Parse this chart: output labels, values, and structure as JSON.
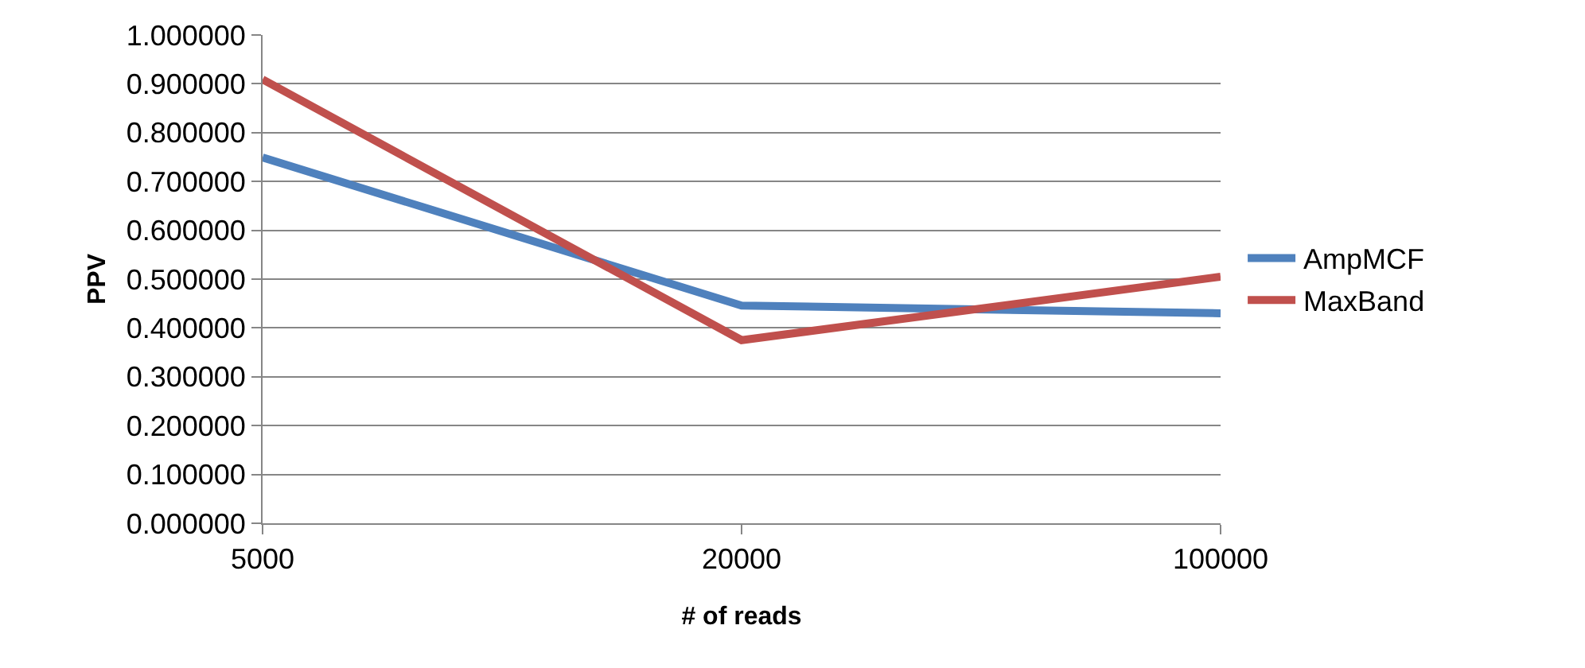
{
  "chart_data": {
    "type": "line",
    "xlabel": "# of reads",
    "ylabel": "PPV",
    "categories": [
      "5000",
      "20000",
      "100000"
    ],
    "series": [
      {
        "name": "AmpMCF",
        "color": "#4f81bd",
        "values": [
          0.749,
          0.446,
          0.43
        ]
      },
      {
        "name": "MaxBand",
        "color": "#c0504d",
        "values": [
          0.909,
          0.375,
          0.505
        ]
      }
    ],
    "ylim": [
      0,
      1
    ],
    "yticks": [
      {
        "value": 0,
        "label": "0.000000"
      },
      {
        "value": 0.1,
        "label": "0.100000"
      },
      {
        "value": 0.2,
        "label": "0.200000"
      },
      {
        "value": 0.3,
        "label": "0.300000"
      },
      {
        "value": 0.4,
        "label": "0.400000"
      },
      {
        "value": 0.5,
        "label": "0.500000"
      },
      {
        "value": 0.6,
        "label": "0.600000"
      },
      {
        "value": 0.7,
        "label": "0.700000"
      },
      {
        "value": 0.8,
        "label": "0.800000"
      },
      {
        "value": 0.9,
        "label": "0.900000"
      },
      {
        "value": 1,
        "label": "1.000000"
      }
    ],
    "grid": "y",
    "legend": "right",
    "marker": "none",
    "line_style": "solid"
  }
}
